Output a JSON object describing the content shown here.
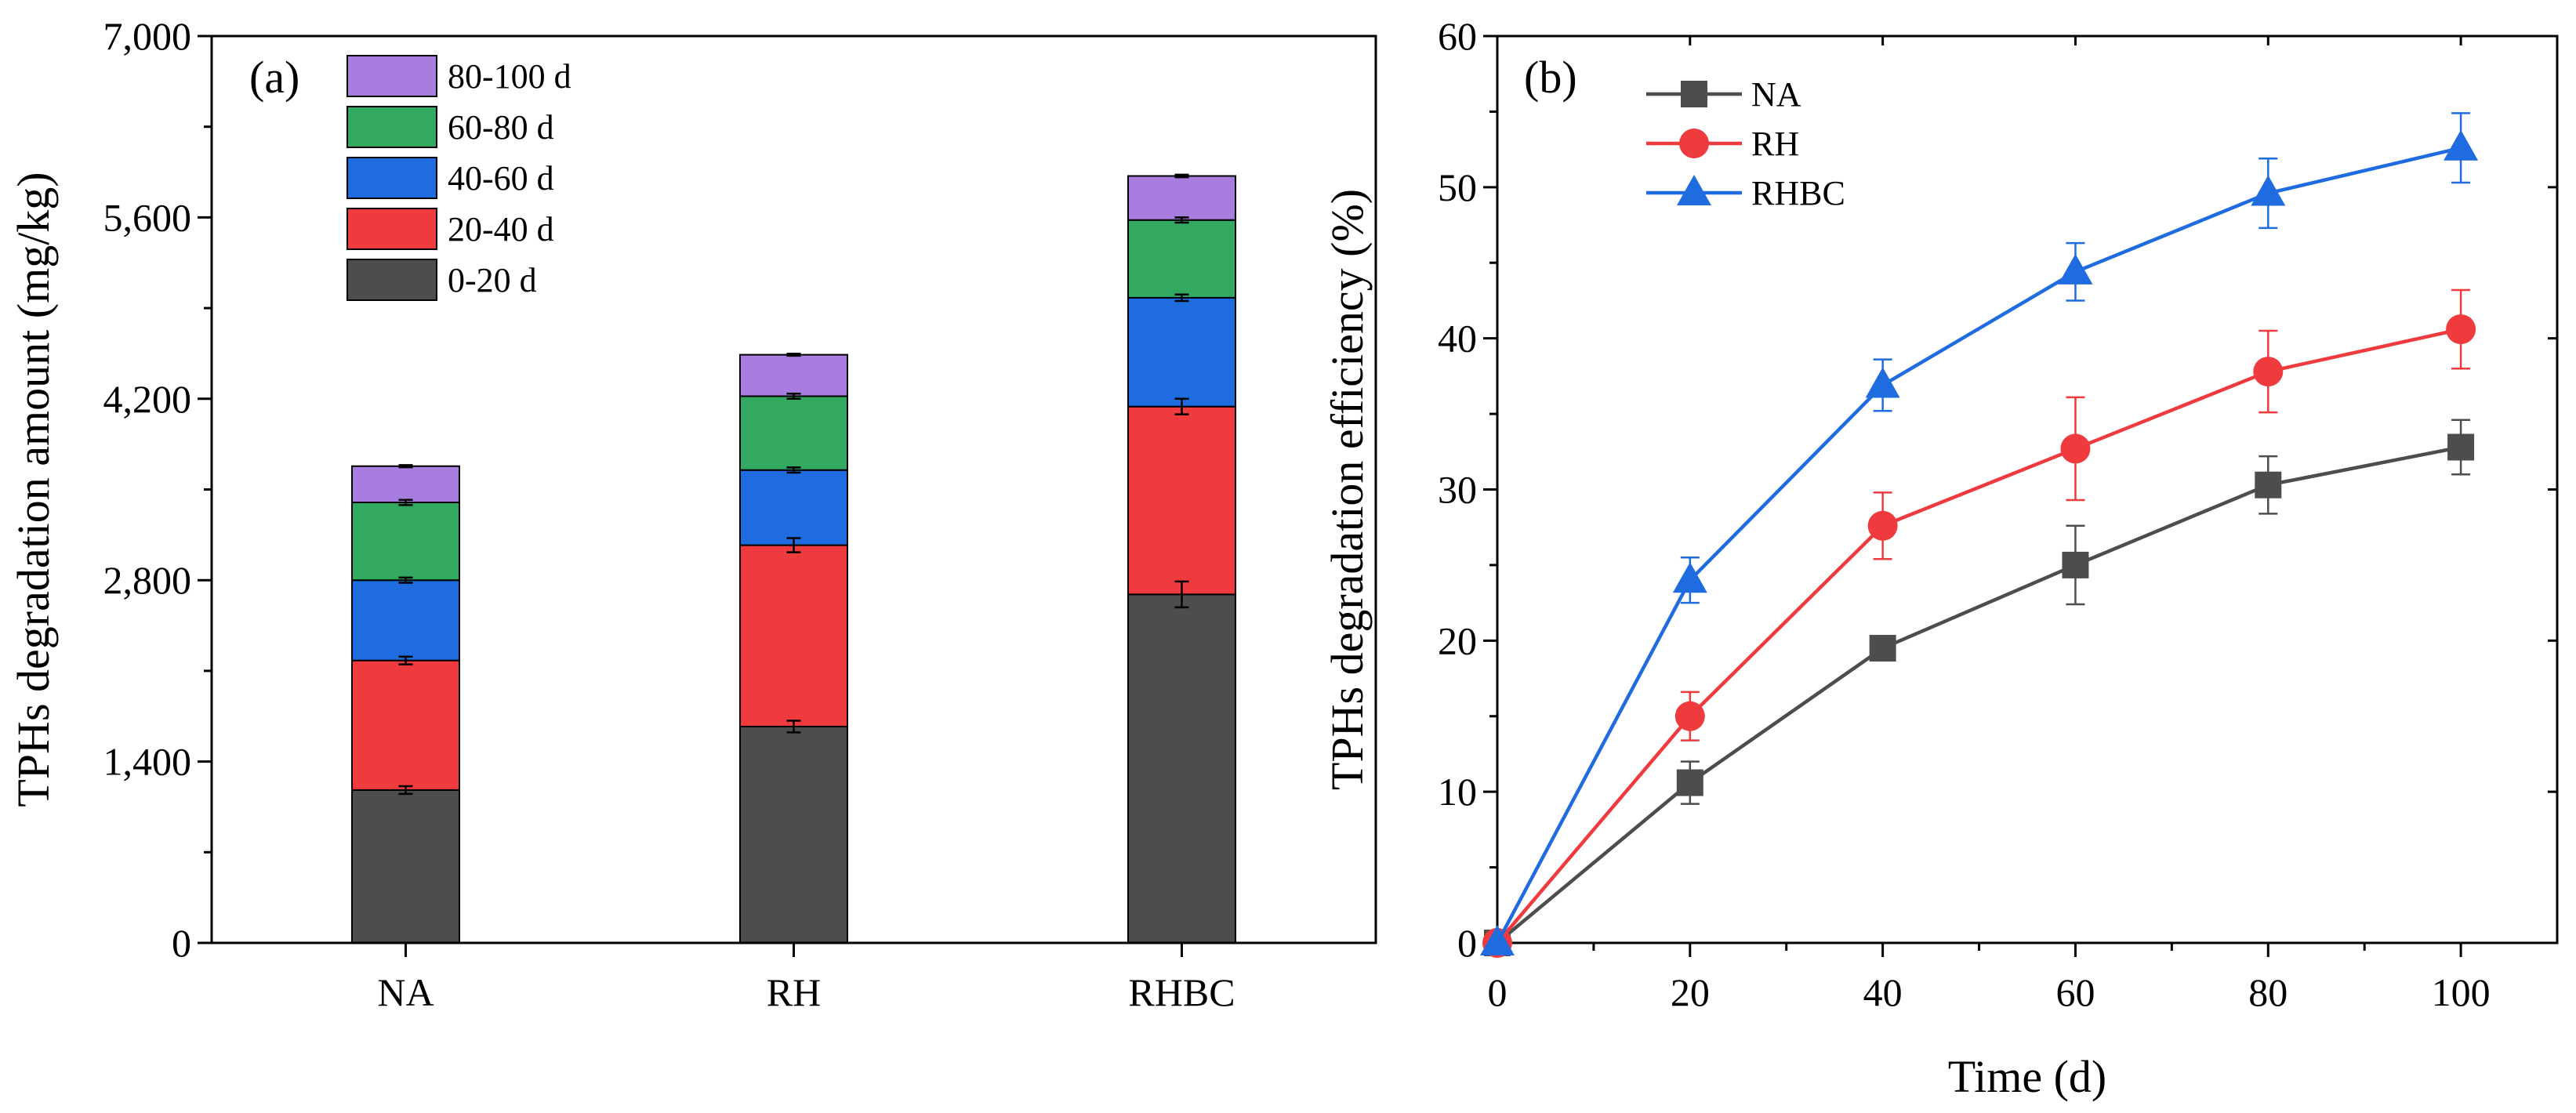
{
  "chart_data": [
    {
      "type": "bar",
      "stacked": true,
      "panel_label": "(a)",
      "categories": [
        "NA",
        "RH",
        "RHBC"
      ],
      "ylabel": "TPHs degradation amount (mg/kg)",
      "xlabel": "",
      "ylim": [
        0,
        7000
      ],
      "yticks": [
        0,
        1400,
        2800,
        4200,
        5600,
        7000
      ],
      "ytick_labels": [
        "0",
        "1,400",
        "2,800",
        "4,200",
        "5,600",
        "7,000"
      ],
      "series": [
        {
          "name": "0-20 d",
          "color": "#4d4d4d",
          "values": [
            1180,
            1670,
            2690
          ],
          "errors": [
            30,
            45,
            100
          ]
        },
        {
          "name": "20-40 d",
          "color": "#ef3a3e",
          "values": [
            1000,
            1400,
            1450
          ],
          "errors": [
            30,
            55,
            60
          ]
        },
        {
          "name": "40-60 d",
          "color": "#1f6be0",
          "values": [
            620,
            580,
            840
          ],
          "errors": [
            20,
            20,
            25
          ]
        },
        {
          "name": "60-80 d",
          "color": "#32a860",
          "values": [
            600,
            570,
            600
          ],
          "errors": [
            20,
            20,
            20
          ]
        },
        {
          "name": "80-100 d",
          "color": "#a97ddf",
          "values": [
            280,
            320,
            340
          ],
          "errors": [
            8,
            8,
            10
          ]
        }
      ],
      "legend_order": [
        "80-100 d",
        "60-80 d",
        "40-60 d",
        "20-40 d",
        "0-20 d"
      ],
      "legend_position": "top-left"
    },
    {
      "type": "line",
      "panel_label": "(b)",
      "x": [
        0,
        20,
        40,
        60,
        80,
        100
      ],
      "xlabel": "Time (d)",
      "ylabel": "TPHs degradation efficiency (%)",
      "xlim": [
        0,
        110
      ],
      "ylim": [
        0,
        60
      ],
      "xticks": [
        0,
        20,
        40,
        60,
        80,
        100
      ],
      "xtick_labels": [
        "0",
        "20",
        "40",
        "60",
        "80",
        "100"
      ],
      "yticks": [
        0,
        10,
        20,
        30,
        40,
        50,
        60
      ],
      "ytick_labels": [
        "0",
        "10",
        "20",
        "30",
        "40",
        "50",
        "60"
      ],
      "series": [
        {
          "name": "NA",
          "color": "#4d4d4d",
          "marker": "square",
          "values": [
            0,
            10.6,
            19.5,
            25.0,
            30.3,
            32.8
          ],
          "errors": [
            0,
            1.4,
            0.6,
            2.6,
            1.9,
            1.8
          ]
        },
        {
          "name": "RH",
          "color": "#ef3a3e",
          "marker": "circle",
          "values": [
            0,
            15.0,
            27.6,
            32.7,
            37.8,
            40.6
          ],
          "errors": [
            0,
            1.6,
            2.2,
            3.4,
            2.7,
            2.6
          ]
        },
        {
          "name": "RHBC",
          "color": "#1f6be0",
          "marker": "triangle",
          "values": [
            0,
            24.0,
            36.9,
            44.4,
            49.6,
            52.6
          ],
          "errors": [
            0,
            1.5,
            1.7,
            1.9,
            2.3,
            2.3
          ]
        }
      ],
      "legend_position": "top-left"
    }
  ]
}
